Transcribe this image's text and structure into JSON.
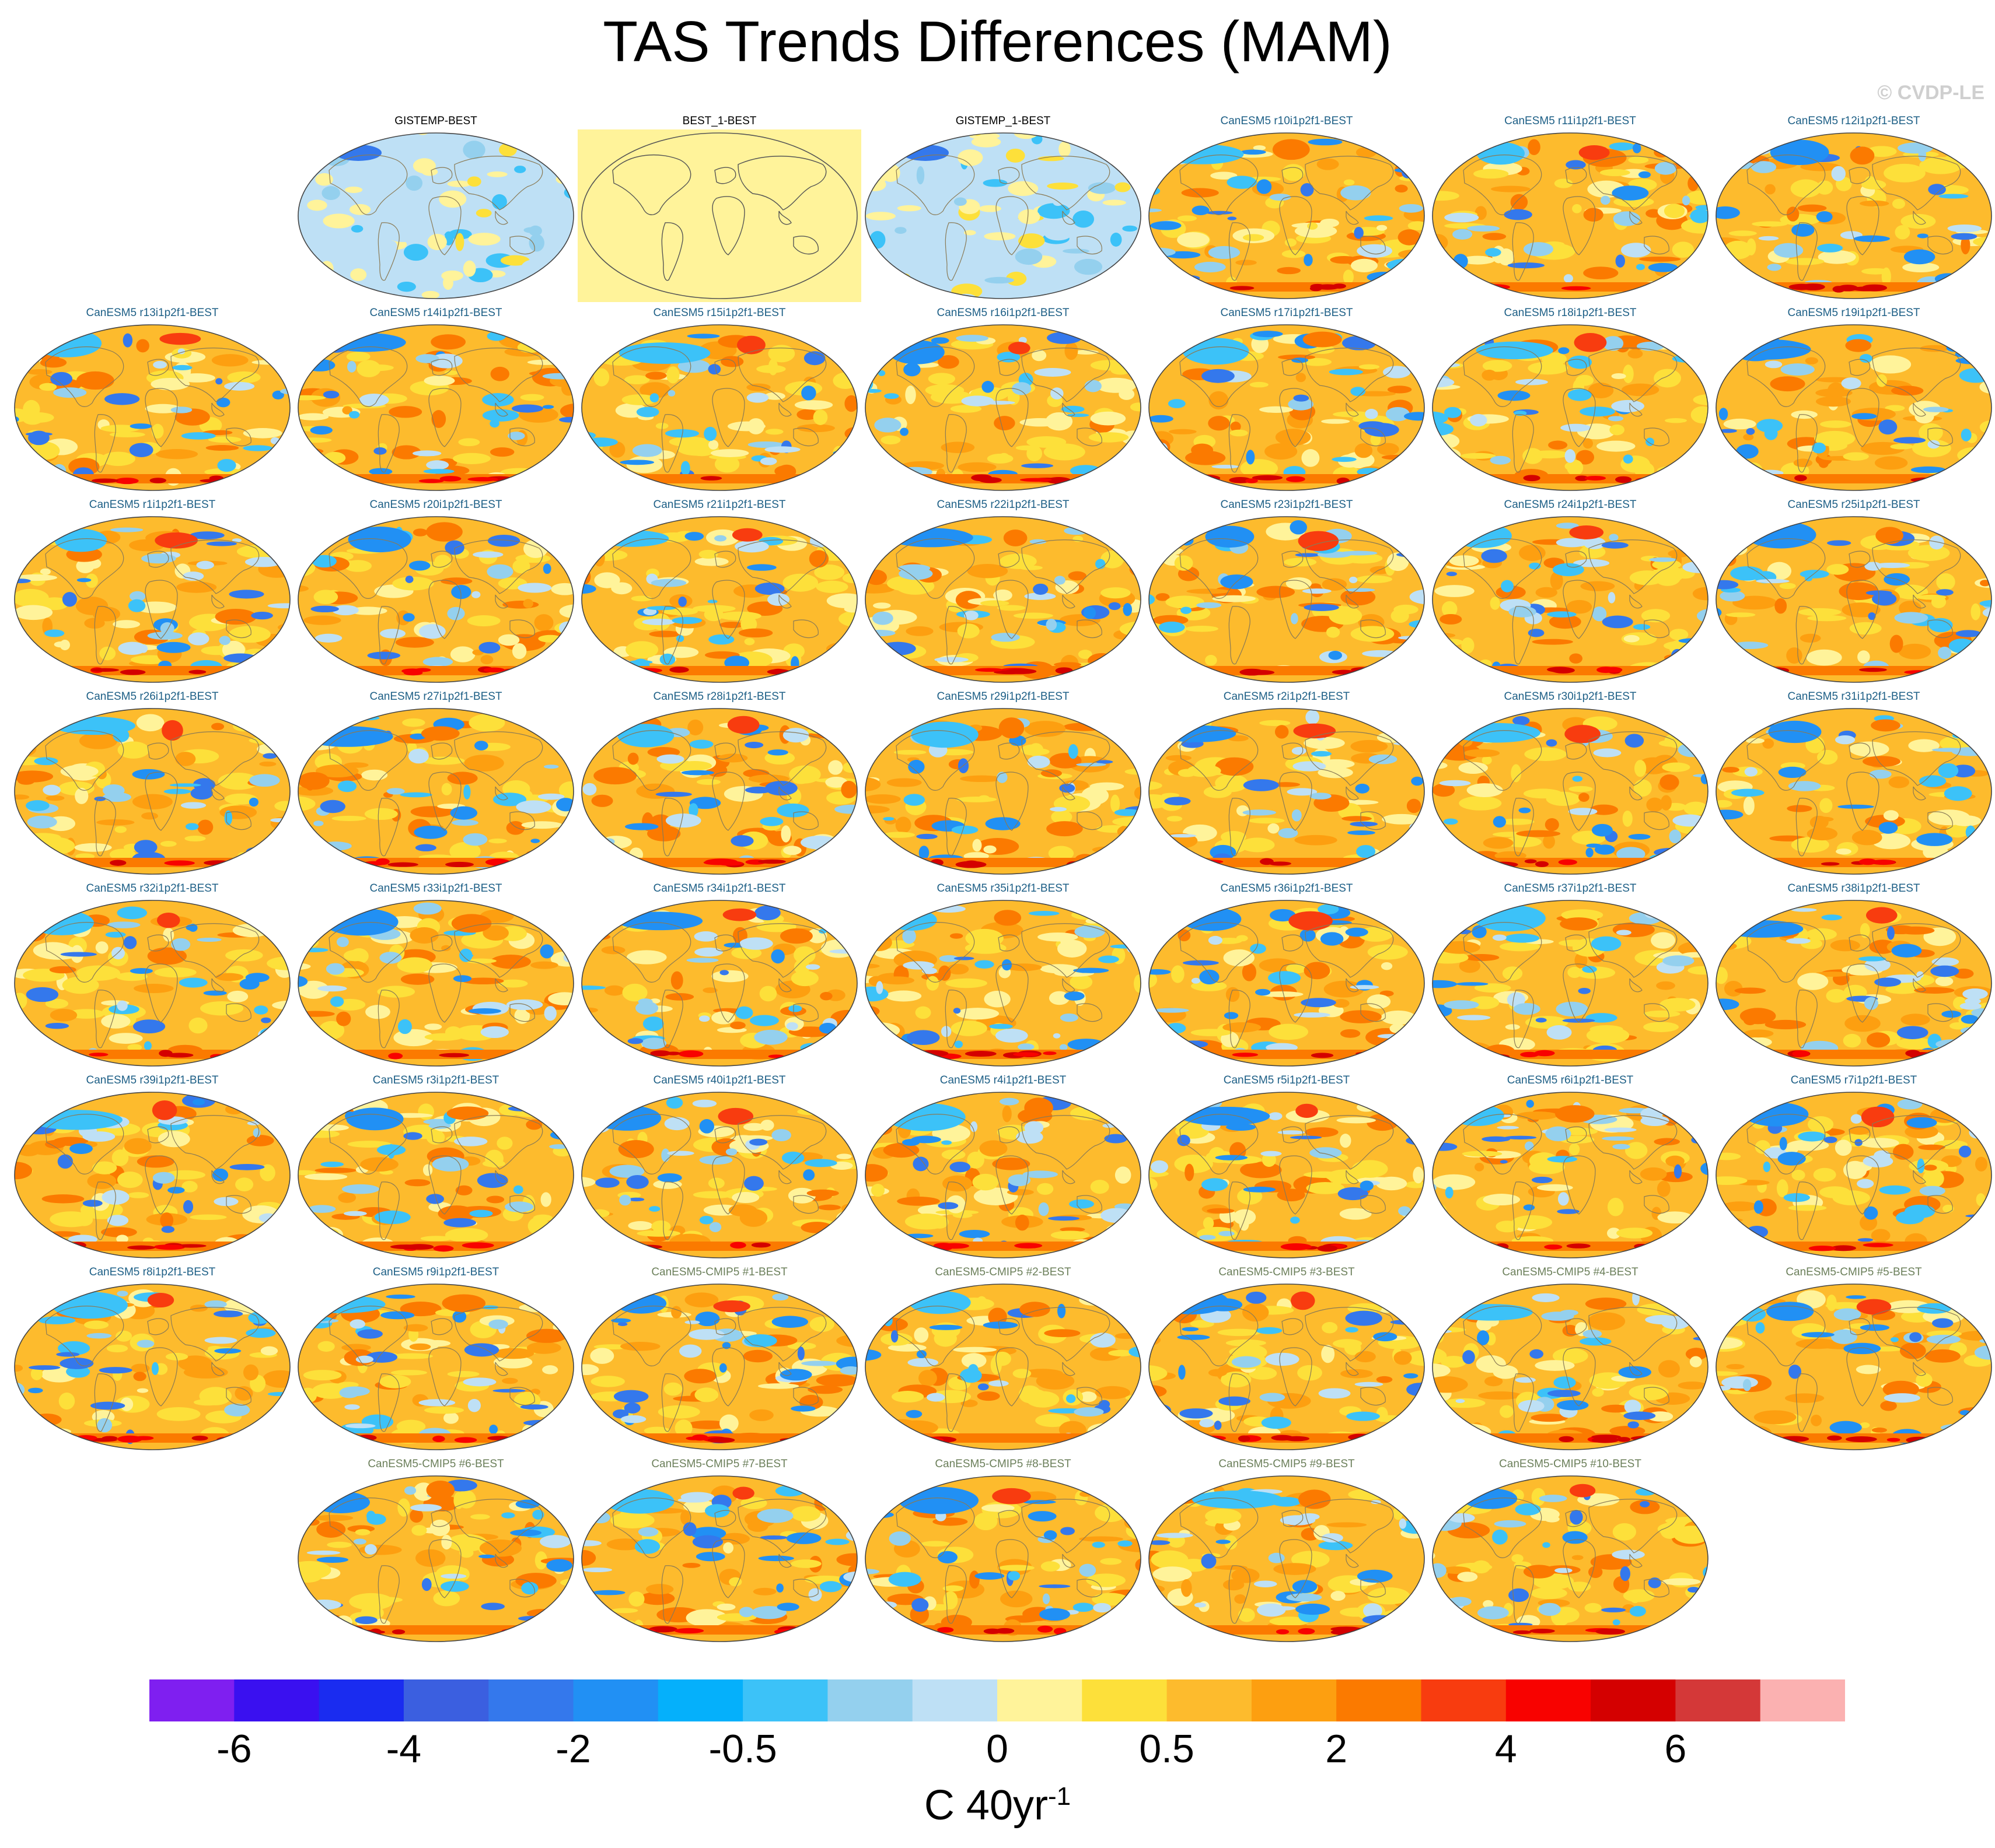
{
  "title": "TAS Trends Differences (MAM)",
  "copyright": "© CVDP-LE",
  "units_main": "C 40yr",
  "units_exp": "-1",
  "colors": {
    "ocean_base": "#fdbb2d",
    "obs_base": "#bee0f5",
    "missing": "#fff39a",
    "coast": "#8a7a55"
  },
  "panels": [
    {
      "label": "GISTEMP-BEST",
      "kind": "obs",
      "style": "obs"
    },
    {
      "label": "BEST_1-BEST",
      "kind": "obs",
      "style": "empty"
    },
    {
      "label": "GISTEMP_1-BEST",
      "kind": "obs",
      "style": "obs"
    },
    {
      "label": "CanESM5 r10i1p2f1-BEST",
      "kind": "ens",
      "style": "model"
    },
    {
      "label": "CanESM5 r11i1p2f1-BEST",
      "kind": "ens",
      "style": "model"
    },
    {
      "label": "CanESM5 r12i1p2f1-BEST",
      "kind": "ens",
      "style": "model"
    },
    {
      "label": "CanESM5 r13i1p2f1-BEST",
      "kind": "ens",
      "style": "model"
    },
    {
      "label": "CanESM5 r14i1p2f1-BEST",
      "kind": "ens",
      "style": "model"
    },
    {
      "label": "CanESM5 r15i1p2f1-BEST",
      "kind": "ens",
      "style": "model"
    },
    {
      "label": "CanESM5 r16i1p2f1-BEST",
      "kind": "ens",
      "style": "model"
    },
    {
      "label": "CanESM5 r17i1p2f1-BEST",
      "kind": "ens",
      "style": "model"
    },
    {
      "label": "CanESM5 r18i1p2f1-BEST",
      "kind": "ens",
      "style": "model"
    },
    {
      "label": "CanESM5 r19i1p2f1-BEST",
      "kind": "ens",
      "style": "model"
    },
    {
      "label": "CanESM5 r1i1p2f1-BEST",
      "kind": "ens",
      "style": "model"
    },
    {
      "label": "CanESM5 r20i1p2f1-BEST",
      "kind": "ens",
      "style": "model"
    },
    {
      "label": "CanESM5 r21i1p2f1-BEST",
      "kind": "ens",
      "style": "model"
    },
    {
      "label": "CanESM5 r22i1p2f1-BEST",
      "kind": "ens",
      "style": "model"
    },
    {
      "label": "CanESM5 r23i1p2f1-BEST",
      "kind": "ens",
      "style": "model"
    },
    {
      "label": "CanESM5 r24i1p2f1-BEST",
      "kind": "ens",
      "style": "model"
    },
    {
      "label": "CanESM5 r25i1p2f1-BEST",
      "kind": "ens",
      "style": "model"
    },
    {
      "label": "CanESM5 r26i1p2f1-BEST",
      "kind": "ens",
      "style": "model"
    },
    {
      "label": "CanESM5 r27i1p2f1-BEST",
      "kind": "ens",
      "style": "model"
    },
    {
      "label": "CanESM5 r28i1p2f1-BEST",
      "kind": "ens",
      "style": "model"
    },
    {
      "label": "CanESM5 r29i1p2f1-BEST",
      "kind": "ens",
      "style": "model"
    },
    {
      "label": "CanESM5 r2i1p2f1-BEST",
      "kind": "ens",
      "style": "model"
    },
    {
      "label": "CanESM5 r30i1p2f1-BEST",
      "kind": "ens",
      "style": "model"
    },
    {
      "label": "CanESM5 r31i1p2f1-BEST",
      "kind": "ens",
      "style": "model"
    },
    {
      "label": "CanESM5 r32i1p2f1-BEST",
      "kind": "ens",
      "style": "model"
    },
    {
      "label": "CanESM5 r33i1p2f1-BEST",
      "kind": "ens",
      "style": "model"
    },
    {
      "label": "CanESM5 r34i1p2f1-BEST",
      "kind": "ens",
      "style": "model"
    },
    {
      "label": "CanESM5 r35i1p2f1-BEST",
      "kind": "ens",
      "style": "model"
    },
    {
      "label": "CanESM5 r36i1p2f1-BEST",
      "kind": "ens",
      "style": "model"
    },
    {
      "label": "CanESM5 r37i1p2f1-BEST",
      "kind": "ens",
      "style": "model"
    },
    {
      "label": "CanESM5 r38i1p2f1-BEST",
      "kind": "ens",
      "style": "model"
    },
    {
      "label": "CanESM5 r39i1p2f1-BEST",
      "kind": "ens",
      "style": "model"
    },
    {
      "label": "CanESM5 r3i1p2f1-BEST",
      "kind": "ens",
      "style": "model"
    },
    {
      "label": "CanESM5 r40i1p2f1-BEST",
      "kind": "ens",
      "style": "model"
    },
    {
      "label": "CanESM5 r4i1p2f1-BEST",
      "kind": "ens",
      "style": "model"
    },
    {
      "label": "CanESM5 r5i1p2f1-BEST",
      "kind": "ens",
      "style": "model"
    },
    {
      "label": "CanESM5 r6i1p2f1-BEST",
      "kind": "ens",
      "style": "model"
    },
    {
      "label": "CanESM5 r7i1p2f1-BEST",
      "kind": "ens",
      "style": "model"
    },
    {
      "label": "CanESM5 r8i1p2f1-BEST",
      "kind": "ens",
      "style": "model"
    },
    {
      "label": "CanESM5 r9i1p2f1-BEST",
      "kind": "ens",
      "style": "model"
    },
    {
      "label": "CanESM5-CMIP5 #1-BEST",
      "kind": "cmip",
      "style": "model"
    },
    {
      "label": "CanESM5-CMIP5 #2-BEST",
      "kind": "cmip",
      "style": "model"
    },
    {
      "label": "CanESM5-CMIP5 #3-BEST",
      "kind": "cmip",
      "style": "model"
    },
    {
      "label": "CanESM5-CMIP5 #4-BEST",
      "kind": "cmip",
      "style": "model"
    },
    {
      "label": "CanESM5-CMIP5 #5-BEST",
      "kind": "cmip",
      "style": "model"
    },
    {
      "label": "CanESM5-CMIP5 #6-BEST",
      "kind": "cmip",
      "style": "model"
    },
    {
      "label": "CanESM5-CMIP5 #7-BEST",
      "kind": "cmip",
      "style": "model"
    },
    {
      "label": "CanESM5-CMIP5 #8-BEST",
      "kind": "cmip",
      "style": "model"
    },
    {
      "label": "CanESM5-CMIP5 #9-BEST",
      "kind": "cmip",
      "style": "model"
    },
    {
      "label": "CanESM5-CMIP5 #10-BEST",
      "kind": "cmip",
      "style": "model"
    }
  ],
  "colorbar": {
    "colors": [
      "#7f1ff0",
      "#3a10f0",
      "#1a2cf0",
      "#3b5fe0",
      "#3478ec",
      "#2190f4",
      "#05b0fb",
      "#3cc2f8",
      "#94d0ee",
      "#bee0f5",
      "#fff39a",
      "#fde03a",
      "#fdbb2d",
      "#fd9f10",
      "#fb7a00",
      "#f83c0f",
      "#f80200",
      "#d40000",
      "#d43838",
      "#fbb1b1"
    ],
    "labels": [
      "-6",
      "-4",
      "-2",
      "-0.5",
      "0",
      "0.5",
      "2",
      "4",
      "6"
    ],
    "label_boundaries": [
      1,
      3,
      5,
      7,
      10,
      12,
      14,
      16,
      18
    ]
  }
}
